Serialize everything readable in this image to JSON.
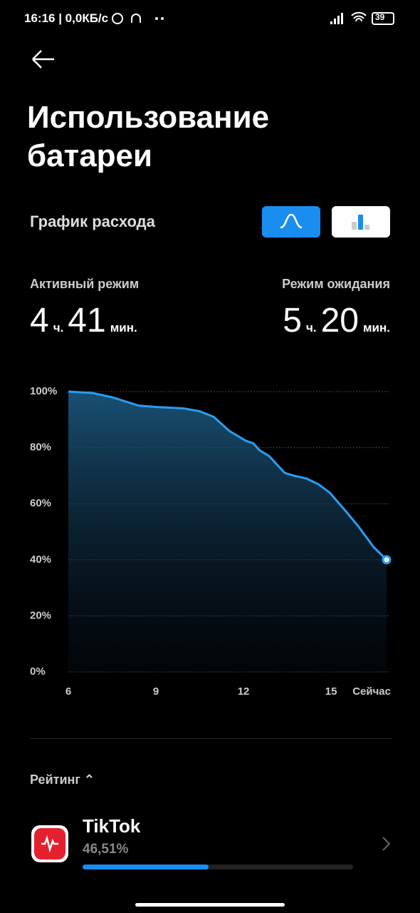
{
  "status_bar": {
    "time": "16:16 | 0,0КБ/с",
    "battery": "39"
  },
  "header": {
    "title_line1": "Использование",
    "title_line2": "батареи"
  },
  "section": {
    "title": "График расхода"
  },
  "stats": {
    "active": {
      "label": "Активный режим",
      "hours": "4",
      "h_unit": "ч.",
      "minutes": "41",
      "m_unit": "мин."
    },
    "standby": {
      "label": "Режим ожидания",
      "hours": "5",
      "h_unit": "ч.",
      "minutes": "20",
      "m_unit": "мин."
    }
  },
  "chart_data": {
    "type": "area",
    "x": [
      6,
      6.83,
      7.49,
      8.41,
      9.02,
      9.95,
      10.49,
      10.98,
      11.51,
      12.07,
      12.34,
      12.56,
      12.88,
      13.41,
      13.73,
      14.15,
      14.56,
      14.95,
      15.49,
      15.93,
      16.46,
      16.9
    ],
    "series": [
      {
        "color": "#2a9df4",
        "values": [
          100,
          99.5,
          98,
          95,
          94.5,
          94,
          93,
          91,
          86,
          82.5,
          81.5,
          79,
          77,
          71,
          70,
          69,
          67,
          64,
          57.5,
          52,
          44.5,
          40
        ]
      }
    ],
    "xlim": [
      6,
      16.9
    ],
    "xticks": [
      6,
      9,
      12,
      15,
      {
        "value": 16.9,
        "label": "Сейчас"
      }
    ],
    "ylim": [
      0,
      100
    ],
    "yticks": [
      {
        "value": 0,
        "label": "0%"
      },
      {
        "value": 20,
        "label": "20%"
      },
      {
        "value": 40,
        "label": "40%"
      },
      {
        "value": 60,
        "label": "60%"
      },
      {
        "value": 80,
        "label": "80%"
      },
      {
        "value": 100,
        "label": "100%"
      }
    ],
    "grid": true
  },
  "ranking": {
    "label": "Рейтинг",
    "apps": [
      {
        "name": "TikTok",
        "percent": 46.51,
        "percent_label": "46,51%"
      }
    ]
  }
}
